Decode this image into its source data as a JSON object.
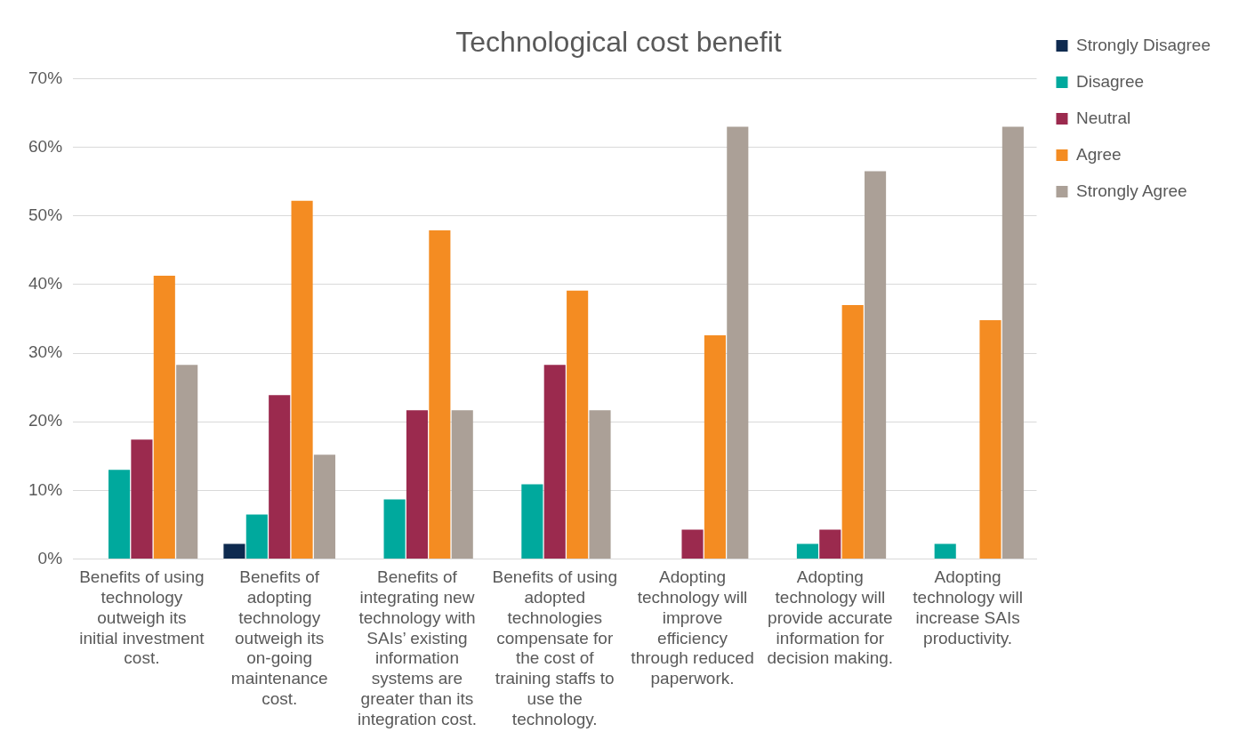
{
  "chart_data": {
    "type": "bar",
    "title": "Technological cost benefit",
    "categories": [
      "Benefits of using technology outweigh its initial investment cost.",
      "Benefits of adopting technology outweigh its on-going maintenance cost.",
      "Benefits of integrating new technology with SAIs’ existing information systems are greater than its integration cost.",
      "Benefits of using adopted technologies compensate for the cost of training staffs to use the technology.",
      "Adopting technology will improve efficiency through reduced paperwork.",
      "Adopting technology will provide accurate information for decision making.",
      "Adopting technology will increase SAIs productivity."
    ],
    "series": [
      {
        "name": "Strongly Disagree",
        "color": "#0e2a4f",
        "values": [
          0,
          2.2,
          0,
          0,
          0,
          0,
          0
        ]
      },
      {
        "name": "Disagree",
        "color": "#00a99d",
        "values": [
          13.0,
          6.5,
          8.7,
          10.9,
          0,
          2.2,
          2.2
        ]
      },
      {
        "name": "Neutral",
        "color": "#9b2a4e",
        "values": [
          17.4,
          23.9,
          21.7,
          28.3,
          4.3,
          4.3,
          0
        ]
      },
      {
        "name": "Agree",
        "color": "#f48c22",
        "values": [
          41.3,
          52.2,
          47.9,
          39.1,
          32.6,
          37.0,
          34.8
        ]
      },
      {
        "name": "Strongly Agree",
        "color": "#aba097",
        "values": [
          28.3,
          15.2,
          21.7,
          21.7,
          63.0,
          56.5,
          63.0
        ]
      }
    ],
    "ylim": [
      0,
      70
    ],
    "yticks": [
      {
        "value": 0,
        "label": "0%"
      },
      {
        "value": 10,
        "label": "10%"
      },
      {
        "value": 20,
        "label": "20%"
      },
      {
        "value": 30,
        "label": "30%"
      },
      {
        "value": 40,
        "label": "40%"
      },
      {
        "value": 50,
        "label": "50%"
      },
      {
        "value": 60,
        "label": "60%"
      },
      {
        "value": 70,
        "label": "70%"
      }
    ],
    "grid": "y",
    "legend": "top right"
  }
}
